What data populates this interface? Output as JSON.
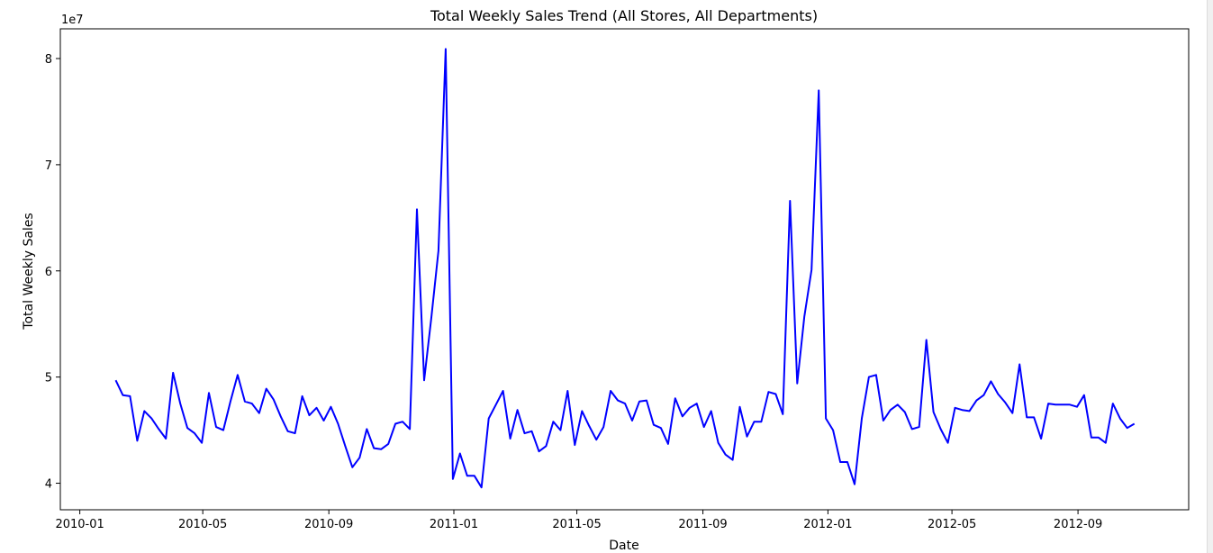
{
  "chart_data": {
    "type": "line",
    "title": "Total Weekly Sales Trend (All Stores, All Departments)",
    "xlabel": "Date",
    "ylabel": "Total Weekly Sales",
    "y_offset_label": "1e7",
    "y_scale_factor": 10000000,
    "xlim": [
      "2009-12-13",
      "2012-12-18"
    ],
    "ylim": [
      37500000,
      82800000
    ],
    "x_ticks": [
      {
        "date": "2010-01-01",
        "label": "2010-01"
      },
      {
        "date": "2010-05-01",
        "label": "2010-05"
      },
      {
        "date": "2010-09-01",
        "label": "2010-09"
      },
      {
        "date": "2011-01-01",
        "label": "2011-01"
      },
      {
        "date": "2011-05-01",
        "label": "2011-05"
      },
      {
        "date": "2011-09-01",
        "label": "2011-09"
      },
      {
        "date": "2012-01-01",
        "label": "2012-01"
      },
      {
        "date": "2012-05-01",
        "label": "2012-05"
      },
      {
        "date": "2012-09-01",
        "label": "2012-09"
      }
    ],
    "y_ticks": [
      {
        "value": 40000000,
        "label": "4"
      },
      {
        "value": 50000000,
        "label": "5"
      },
      {
        "value": 60000000,
        "label": "6"
      },
      {
        "value": 70000000,
        "label": "7"
      },
      {
        "value": 80000000,
        "label": "8"
      }
    ],
    "grid": false,
    "series": [
      {
        "color": "#0000ff",
        "start_date": "2010-02-05",
        "step_days": 7,
        "values": [
          49.7,
          48.3,
          48.2,
          44.0,
          46.8,
          46.1,
          45.1,
          44.2,
          50.4,
          47.5,
          45.2,
          44.7,
          43.8,
          48.5,
          45.3,
          45.0,
          47.7,
          50.2,
          47.7,
          47.5,
          46.6,
          48.9,
          47.9,
          46.3,
          44.9,
          44.7,
          48.2,
          46.4,
          47.1,
          45.9,
          47.2,
          45.6,
          43.5,
          41.5,
          42.4,
          45.1,
          43.3,
          43.2,
          43.7,
          45.6,
          45.8,
          45.1,
          65.8,
          49.7,
          55.6,
          61.9,
          80.9,
          40.4,
          42.8,
          40.7,
          40.7,
          39.6,
          46.1,
          47.4,
          48.7,
          44.2,
          46.9,
          44.7,
          44.9,
          43.0,
          43.5,
          45.8,
          45.0,
          48.7,
          43.6,
          46.8,
          45.4,
          44.1,
          45.3,
          48.7,
          47.8,
          47.5,
          45.9,
          47.7,
          47.8,
          45.5,
          45.2,
          43.7,
          48.0,
          46.3,
          47.1,
          47.5,
          45.3,
          46.8,
          43.8,
          42.7,
          42.2,
          47.2,
          44.4,
          45.8,
          45.8,
          48.6,
          48.4,
          46.5,
          66.6,
          49.4,
          55.7,
          60.1,
          77.0,
          46.1,
          45.0,
          42.0,
          42.0,
          39.9,
          46.1,
          50.0,
          50.2,
          45.9,
          46.9,
          47.4,
          46.7,
          45.1,
          45.3,
          53.5,
          46.7,
          45.1,
          43.8,
          47.1,
          46.9,
          46.8,
          47.8,
          48.3,
          49.6,
          48.4,
          47.6,
          46.6,
          51.2,
          46.2,
          46.2,
          44.2,
          47.5,
          47.4,
          47.4,
          47.4,
          47.2,
          48.3,
          44.3,
          44.3,
          43.8,
          47.5,
          46.1,
          45.2,
          45.6
        ]
      }
    ]
  }
}
